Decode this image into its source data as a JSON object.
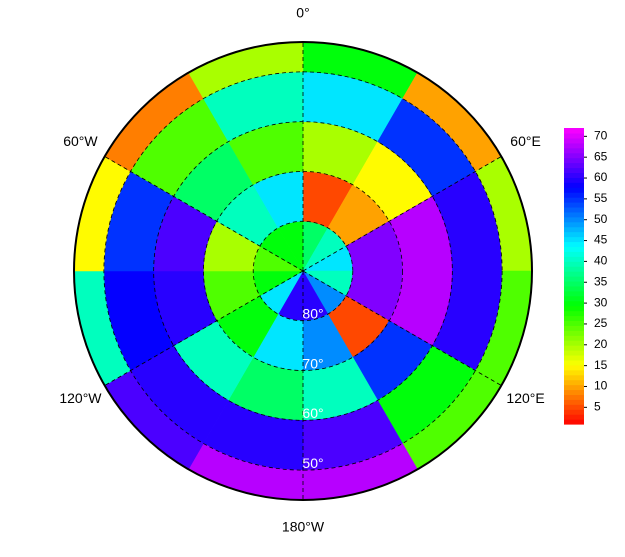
{
  "map": {
    "lon_labels": [
      {
        "text": "0°",
        "lon": 0
      },
      {
        "text": "60°E",
        "lon": 60
      },
      {
        "text": "120°E",
        "lon": 120
      },
      {
        "text": "180°W",
        "lon": 180
      },
      {
        "text": "120°W",
        "lon": -120
      },
      {
        "text": "60°W",
        "lon": -60
      }
    ],
    "lat_labels": [
      {
        "text": "80°",
        "lat": 80
      },
      {
        "text": "70°",
        "lat": 70
      },
      {
        "text": "60°",
        "lat": 60
      },
      {
        "text": "50°",
        "lat": 50
      }
    ],
    "lat_limit": 44,
    "grid": {
      "lon_edges": [
        0,
        30,
        60,
        90,
        120,
        150,
        180,
        210,
        240,
        270,
        300,
        330,
        360
      ],
      "lat_edges": [
        90,
        80,
        70,
        60,
        50,
        44
      ],
      "values": [
        [
          35,
          5,
          20,
          45,
          30
        ],
        [
          40,
          10,
          15,
          55,
          10
        ],
        [
          45,
          65,
          68,
          60,
          20
        ],
        [
          40,
          65,
          68,
          60,
          25
        ],
        [
          50,
          5,
          55,
          30,
          25
        ],
        [
          60,
          50,
          40,
          62,
          68
        ],
        [
          60,
          45,
          35,
          60,
          68
        ],
        [
          45,
          30,
          40,
          60,
          62
        ],
        [
          30,
          25,
          60,
          58,
          40
        ],
        [
          25,
          20,
          62,
          55,
          15
        ],
        [
          30,
          40,
          35,
          25,
          8
        ],
        [
          30,
          45,
          25,
          40,
          20
        ]
      ]
    },
    "colorbar": {
      "lim": [
        1,
        72
      ],
      "ticks": [
        5,
        10,
        15,
        20,
        25,
        30,
        35,
        40,
        45,
        50,
        55,
        60,
        65,
        70
      ]
    }
  }
}
